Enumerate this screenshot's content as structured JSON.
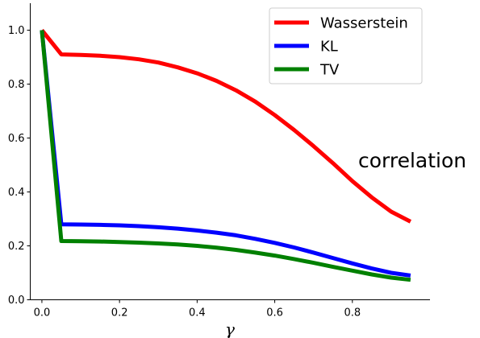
{
  "chart_data": {
    "type": "line",
    "title": "",
    "xlabel": "γ",
    "ylabel": "",
    "annotation": "correlation",
    "xlim": [
      -0.03,
      1.0
    ],
    "ylim": [
      0.0,
      1.1
    ],
    "xticks": [
      0.0,
      0.2,
      0.4,
      0.6,
      0.8
    ],
    "xtick_labels": [
      "0.0",
      "0.2",
      "0.4",
      "0.6",
      "0.8"
    ],
    "yticks": [
      0.0,
      0.2,
      0.4,
      0.6,
      0.8,
      1.0
    ],
    "ytick_labels": [
      "0.0",
      "0.2",
      "0.4",
      "0.6",
      "0.8",
      "1.0"
    ],
    "grid": false,
    "legend_position": "top-right",
    "series": [
      {
        "name": "Wasserstein",
        "color": "#ff0000",
        "x": [
          0.0,
          0.05,
          0.1,
          0.15,
          0.2,
          0.25,
          0.3,
          0.35,
          0.4,
          0.45,
          0.5,
          0.55,
          0.6,
          0.65,
          0.7,
          0.75,
          0.8,
          0.85,
          0.9,
          0.95
        ],
        "values": [
          1.0,
          0.91,
          0.908,
          0.905,
          0.9,
          0.892,
          0.88,
          0.862,
          0.84,
          0.812,
          0.777,
          0.735,
          0.685,
          0.63,
          0.57,
          0.507,
          0.44,
          0.38,
          0.327,
          0.29
        ]
      },
      {
        "name": "KL",
        "color": "#0000ff",
        "x": [
          0.0,
          0.05,
          0.1,
          0.15,
          0.2,
          0.25,
          0.3,
          0.35,
          0.4,
          0.45,
          0.5,
          0.55,
          0.6,
          0.65,
          0.7,
          0.75,
          0.8,
          0.85,
          0.9,
          0.95
        ],
        "values": [
          1.0,
          0.28,
          0.279,
          0.278,
          0.276,
          0.273,
          0.269,
          0.264,
          0.257,
          0.249,
          0.239,
          0.226,
          0.211,
          0.194,
          0.175,
          0.155,
          0.135,
          0.116,
          0.1,
          0.09
        ]
      },
      {
        "name": "TV",
        "color": "#008000",
        "x": [
          0.0,
          0.05,
          0.1,
          0.15,
          0.2,
          0.25,
          0.3,
          0.35,
          0.4,
          0.45,
          0.5,
          0.55,
          0.6,
          0.65,
          0.7,
          0.75,
          0.8,
          0.85,
          0.9,
          0.95
        ],
        "values": [
          1.0,
          0.218,
          0.217,
          0.216,
          0.214,
          0.212,
          0.209,
          0.205,
          0.2,
          0.193,
          0.185,
          0.175,
          0.164,
          0.151,
          0.137,
          0.122,
          0.108,
          0.094,
          0.082,
          0.074
        ]
      }
    ]
  }
}
